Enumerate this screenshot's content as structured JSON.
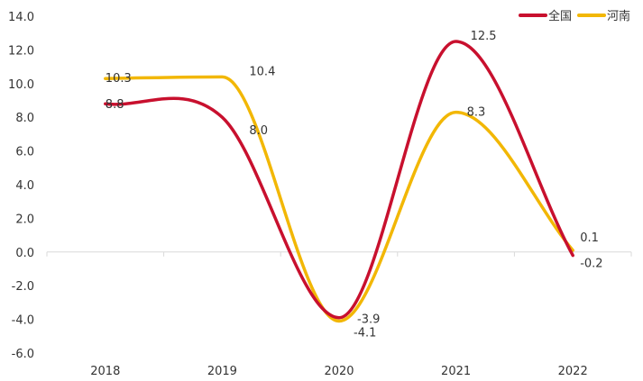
{
  "chart_data": {
    "type": "line",
    "categories": [
      "2018",
      "2019",
      "2020",
      "2021",
      "2022"
    ],
    "ylim": [
      -6.0,
      14.0
    ],
    "yticks": [
      14.0,
      12.0,
      10.0,
      8.0,
      6.0,
      4.0,
      2.0,
      0.0,
      -2.0,
      -4.0,
      -6.0
    ],
    "ytick_labels": [
      "14.0",
      "12.0",
      "10.0",
      "8.0",
      "6.0",
      "4.0",
      "2.0",
      "0.0",
      "-2.0",
      "-4.0",
      "-6.0"
    ],
    "legend_position": "top-right",
    "grid": false,
    "smooth": true,
    "series": [
      {
        "name": "全国",
        "color": "#C8102E",
        "values": [
          8.8,
          8.0,
          -3.9,
          12.5,
          -0.2
        ],
        "labels": [
          "8.8",
          "8.0",
          "-3.9",
          "12.5",
          "-0.2"
        ]
      },
      {
        "name": "河南",
        "color": "#F2B705",
        "values": [
          10.3,
          10.4,
          -4.1,
          8.3,
          0.1
        ],
        "labels": [
          "10.3",
          "10.4",
          "-4.1",
          "8.3",
          "0.1"
        ]
      }
    ]
  }
}
